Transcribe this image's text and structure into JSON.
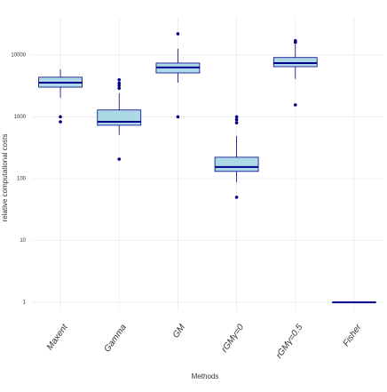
{
  "chart_data": {
    "type": "box",
    "x_label": "Methods",
    "y_label": "relative computational costs",
    "categories": [
      "Maxent",
      "Gamma",
      "GM",
      "rGMγ=0",
      "rGMγ=0.5",
      "Fisher"
    ],
    "color": "#add8e6",
    "edge_color": "#00008b",
    "log_y": true,
    "grid": true,
    "ylim": [
      0.72,
      40000
    ],
    "yticks": [
      1,
      10,
      100,
      1000,
      10000
    ],
    "boxes": [
      {
        "whisker_low": 2040,
        "q1": 3020,
        "median": 3570,
        "q3": 4370,
        "whisker_high": 5880,
        "outliers": [
          1000,
          830
        ]
      },
      {
        "whisker_low": 510,
        "q1": 730,
        "median": 830,
        "q3": 1290,
        "whisker_high": 2400,
        "outliers": [
          207,
          2900,
          3200,
          3500,
          3970
        ]
      },
      {
        "whisker_low": 3570,
        "q1": 5130,
        "median": 6300,
        "q3": 7400,
        "whisker_high": 12600,
        "outliers": [
          22000,
          1000
        ]
      },
      {
        "whisker_low": 88,
        "q1": 131,
        "median": 154,
        "q3": 222,
        "whisker_high": 490,
        "outliers": [
          1000,
          900,
          800,
          50
        ]
      },
      {
        "whisker_low": 4100,
        "q1": 6470,
        "median": 7400,
        "q3": 9100,
        "whisker_high": 14800,
        "outliers": [
          17000,
          16000,
          1560
        ]
      },
      {
        "whisker_low": 1,
        "q1": 1,
        "median": 1,
        "q3": 1,
        "whisker_high": 1,
        "outliers": []
      }
    ]
  }
}
